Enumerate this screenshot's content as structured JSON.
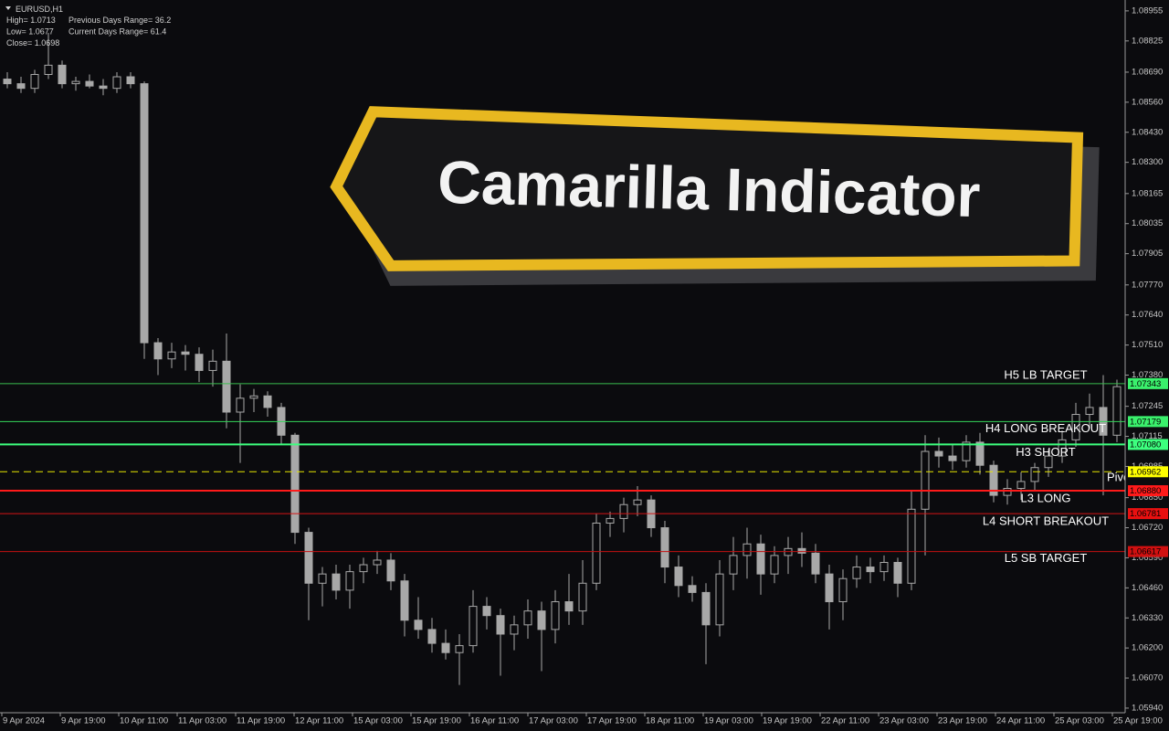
{
  "chart_data": {
    "type": "candlestick",
    "symbol": "EURUSD,H1",
    "info": [
      [
        "High= 1.0713",
        "Previous Days Range= 36.2"
      ],
      [
        "Low= 1.0677",
        "Current Days Range= 61.4"
      ],
      [
        "Close= 1.0698"
      ]
    ],
    "banner": "Camarilla Indicator",
    "ylim": [
      1.0592,
      1.09002
    ],
    "yticks": [
      1.08955,
      1.08825,
      {
        "value": 1.0869,
        "label": "1.08690"
      },
      {
        "value": 1.0856,
        "label": "1.08560"
      },
      {
        "value": 1.0843,
        "label": "1.08430"
      },
      {
        "value": 1.083,
        "label": "1.08300"
      },
      1.08165,
      1.08035,
      1.07905,
      {
        "value": 1.0777,
        "label": "1.07770"
      },
      {
        "value": 1.0764,
        "label": "1.07640"
      },
      {
        "value": 1.0751,
        "label": "1.07510"
      },
      {
        "value": 1.0738,
        "label": "1.07380"
      },
      1.07245,
      1.07115,
      1.06985,
      {
        "value": 1.0685,
        "label": "1.06850"
      },
      {
        "value": 1.0672,
        "label": "1.06720"
      },
      {
        "value": 1.0659,
        "label": "1.06590"
      },
      {
        "value": 1.0646,
        "label": "1.06460"
      },
      {
        "value": 1.0633,
        "label": "1.06330"
      },
      {
        "value": 1.062,
        "label": "1.06200"
      },
      {
        "value": 1.0607,
        "label": "1.06070"
      },
      {
        "value": 1.0594,
        "label": "1.05940"
      }
    ],
    "x_labels": [
      "9 Apr 2024",
      "9 Apr 19:00",
      "10 Apr 11:00",
      "11 Apr 03:00",
      "11 Apr 19:00",
      "12 Apr 11:00",
      "15 Apr 03:00",
      "15 Apr 19:00",
      "16 Apr 11:00",
      "17 Apr 03:00",
      "17 Apr 19:00",
      "18 Apr 11:00",
      "19 Apr 03:00",
      "19 Apr 19:00",
      "22 Apr 11:00",
      "23 Apr 03:00",
      "23 Apr 19:00",
      "24 Apr 11:00",
      "25 Apr 03:00",
      "25 Apr 19:00"
    ],
    "candle_color": "#a8a8a8",
    "candles": [
      [
        1.0866,
        1.0869,
        1.0862,
        1.0864
      ],
      [
        1.0864,
        1.0867,
        1.086,
        1.0862
      ],
      [
        1.0862,
        1.087,
        1.086,
        1.0868
      ],
      [
        1.0868,
        1.0886,
        1.0866,
        1.0872
      ],
      [
        1.0872,
        1.0874,
        1.0862,
        1.0864
      ],
      [
        1.0864,
        1.0867,
        1.0861,
        1.0865
      ],
      [
        1.0865,
        1.0868,
        1.0862,
        1.0863
      ],
      [
        1.0863,
        1.0866,
        1.0859,
        1.0862
      ],
      [
        1.0862,
        1.0869,
        1.086,
        1.0867
      ],
      [
        1.0867,
        1.0869,
        1.0862,
        1.0864
      ],
      [
        1.0864,
        1.0865,
        1.0745,
        1.0752
      ],
      [
        1.0752,
        1.0754,
        1.0738,
        1.0745
      ],
      [
        1.0745,
        1.0752,
        1.0741,
        1.0748
      ],
      [
        1.0748,
        1.0751,
        1.074,
        1.0747
      ],
      [
        1.0747,
        1.075,
        1.0735,
        1.074
      ],
      [
        1.074,
        1.0749,
        1.0733,
        1.0744
      ],
      [
        1.0744,
        1.0756,
        1.0715,
        1.0722
      ],
      [
        1.0722,
        1.0734,
        1.07,
        1.0728
      ],
      [
        1.0728,
        1.0732,
        1.0722,
        1.0729
      ],
      [
        1.0729,
        1.0731,
        1.072,
        1.0724
      ],
      [
        1.0724,
        1.0726,
        1.0708,
        1.0712
      ],
      [
        1.0712,
        1.0713,
        1.0665,
        1.067
      ],
      [
        1.067,
        1.0672,
        1.0632,
        1.0648
      ],
      [
        1.0648,
        1.0655,
        1.0638,
        1.0652
      ],
      [
        1.0652,
        1.0656,
        1.0641,
        1.0645
      ],
      [
        1.0645,
        1.0656,
        1.0637,
        1.0653
      ],
      [
        1.0653,
        1.0659,
        1.0648,
        1.0656
      ],
      [
        1.0656,
        1.0662,
        1.0652,
        1.0658
      ],
      [
        1.0658,
        1.0661,
        1.0645,
        1.0649
      ],
      [
        1.0649,
        1.0652,
        1.0625,
        1.0632
      ],
      [
        1.0632,
        1.0642,
        1.0624,
        1.0628
      ],
      [
        1.0628,
        1.0633,
        1.0618,
        1.0622
      ],
      [
        1.0622,
        1.0628,
        1.0615,
        1.0618
      ],
      [
        1.0618,
        1.0626,
        1.0604,
        1.0621
      ],
      [
        1.0621,
        1.0645,
        1.0618,
        1.0638
      ],
      [
        1.0638,
        1.0642,
        1.0628,
        1.0634
      ],
      [
        1.0634,
        1.0637,
        1.0608,
        1.0626
      ],
      [
        1.0626,
        1.0634,
        1.0619,
        1.063
      ],
      [
        1.063,
        1.0641,
        1.0624,
        1.0636
      ],
      [
        1.0636,
        1.064,
        1.061,
        1.0628
      ],
      [
        1.0628,
        1.0645,
        1.0622,
        1.064
      ],
      [
        1.064,
        1.0652,
        1.063,
        1.0636
      ],
      [
        1.0636,
        1.0658,
        1.063,
        1.0648
      ],
      [
        1.0648,
        1.0678,
        1.0645,
        1.0674
      ],
      [
        1.0674,
        1.0679,
        1.0668,
        1.0676
      ],
      [
        1.0676,
        1.0685,
        1.067,
        1.0682
      ],
      [
        1.0682,
        1.069,
        1.0677,
        1.0684
      ],
      [
        1.0684,
        1.0686,
        1.0668,
        1.0672
      ],
      [
        1.0672,
        1.0675,
        1.0648,
        1.0655
      ],
      [
        1.0655,
        1.066,
        1.0642,
        1.0647
      ],
      [
        1.0647,
        1.0651,
        1.064,
        1.0644
      ],
      [
        1.0644,
        1.0648,
        1.0613,
        1.063
      ],
      [
        1.063,
        1.0658,
        1.0625,
        1.0652
      ],
      [
        1.0652,
        1.0668,
        1.0645,
        1.066
      ],
      [
        1.066,
        1.0672,
        1.065,
        1.0665
      ],
      [
        1.0665,
        1.0669,
        1.0643,
        1.0652
      ],
      [
        1.0652,
        1.0664,
        1.0648,
        1.066
      ],
      [
        1.066,
        1.0668,
        1.0652,
        1.0663
      ],
      [
        1.0663,
        1.067,
        1.0655,
        1.0661
      ],
      [
        1.0661,
        1.0665,
        1.0648,
        1.0652
      ],
      [
        1.0652,
        1.0656,
        1.0628,
        1.064
      ],
      [
        1.064,
        1.0654,
        1.0632,
        1.065
      ],
      [
        1.065,
        1.066,
        1.0646,
        1.0655
      ],
      [
        1.0655,
        1.0659,
        1.0648,
        1.0653
      ],
      [
        1.0653,
        1.066,
        1.0649,
        1.0657
      ],
      [
        1.0657,
        1.0659,
        1.0642,
        1.0648
      ],
      [
        1.0648,
        1.0688,
        1.0645,
        1.068
      ],
      [
        1.068,
        1.0712,
        1.066,
        1.0705
      ],
      [
        1.0705,
        1.0711,
        1.0698,
        1.0703
      ],
      [
        1.0703,
        1.0708,
        1.0697,
        1.0701
      ],
      [
        1.0701,
        1.0712,
        1.0698,
        1.0709
      ],
      [
        1.0709,
        1.0713,
        1.0695,
        1.0699
      ],
      [
        1.0699,
        1.0701,
        1.0683,
        1.0686
      ],
      [
        1.0686,
        1.0693,
        1.0682,
        1.0689
      ],
      [
        1.0689,
        1.0696,
        1.0684,
        1.0692
      ],
      [
        1.0692,
        1.07,
        1.0688,
        1.0698
      ],
      [
        1.0698,
        1.0706,
        1.0694,
        1.0703
      ],
      [
        1.0703,
        1.0714,
        1.07,
        1.071
      ],
      [
        1.071,
        1.0726,
        1.0707,
        1.0721
      ],
      [
        1.0721,
        1.073,
        1.0715,
        1.0724
      ],
      [
        1.0724,
        1.0738,
        1.0686,
        1.0712
      ],
      [
        1.0712,
        1.0736,
        1.0709,
        1.0733
      ]
    ],
    "levels": {
      "names": [
        "H5 LB TARGET",
        "H4 LONG BREAKOUT",
        "H3 SHORT",
        "Pivot",
        "L3 LONG",
        "L4 SHORT BREAKOUT",
        "L5 SB TARGET"
      ],
      "values": [
        1.07343,
        1.07179,
        1.0708,
        1.06962,
        1.0688,
        1.06781,
        1.06617
      ],
      "value_labels": [
        "1.07343",
        "1.07179",
        "1.07080",
        "1.06962",
        "1.06880",
        "1.06781",
        "1.06617"
      ],
      "colors": [
        "#3bbd4e",
        "#35d65a",
        "#3dff7e",
        "#e6e600",
        "#ff1a1a",
        "#d41414",
        "#c41010"
      ],
      "box_colors": [
        "#3af06c",
        "#3af06c",
        "#3dff7e",
        "#ffff00",
        "#ff1a1a",
        "#e81010",
        "#d01010"
      ]
    }
  }
}
